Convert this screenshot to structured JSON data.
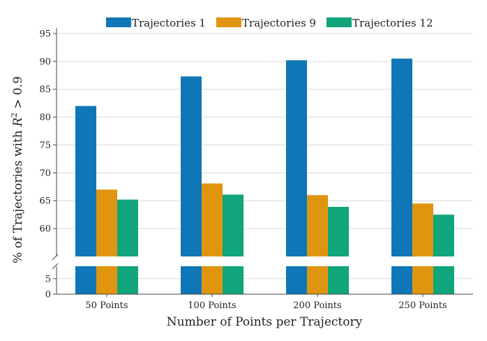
{
  "chart_data": {
    "type": "bar",
    "categories": [
      "50 Points",
      "100 Points",
      "200 Points",
      "250 Points"
    ],
    "series": [
      {
        "name": "Trajectories 1",
        "color": "#0f77b7",
        "values": [
          82.0,
          87.3,
          90.2,
          90.5
        ]
      },
      {
        "name": "Trajectories 9",
        "color": "#e0950f",
        "values": [
          67.0,
          68.1,
          66.0,
          64.5
        ]
      },
      {
        "name": "Trajectories 12",
        "color": "#10a57a",
        "values": [
          65.2,
          66.1,
          63.9,
          62.5
        ]
      }
    ],
    "xlabel": "Number of Points per Trajectory",
    "ylabel": "% of Trajectories with R² > 0.9",
    "ylabel_parts": {
      "prefix": "% of Trajectories with ",
      "var": "R",
      "sup": "2",
      "suffix": " > 0.9"
    },
    "broken_axis": true,
    "upper_ylim": [
      55,
      96
    ],
    "upper_ticks": [
      "60",
      "65",
      "70",
      "75",
      "80",
      "85",
      "90",
      "95"
    ],
    "lower_ylim": [
      0,
      9
    ],
    "lower_ticks": [
      "0",
      "5"
    ],
    "legend_position": "top"
  }
}
